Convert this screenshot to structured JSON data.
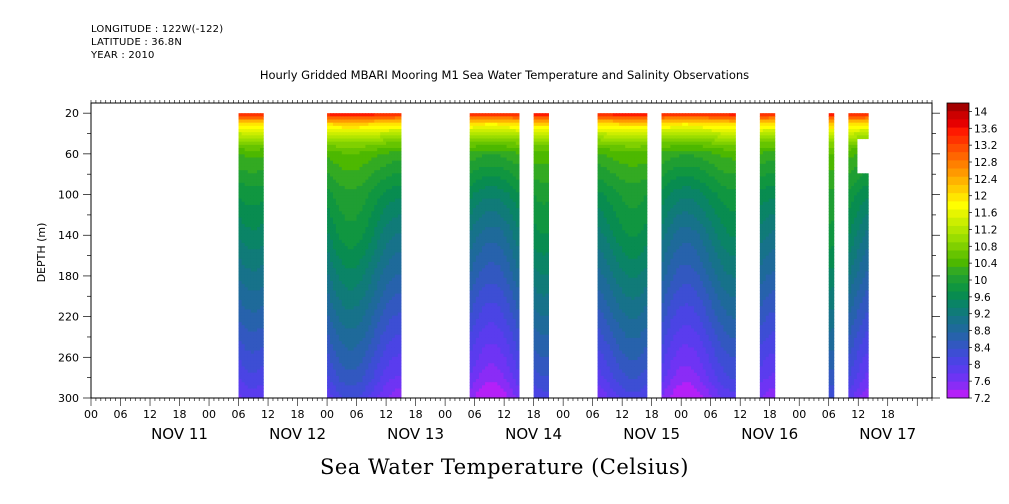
{
  "header": {
    "longitude": "LONGITUDE : 122W(-122)",
    "latitude": "LATITUDE : 36.8N",
    "year": "YEAR : 2010"
  },
  "title": "Hourly Gridded MBARI Mooring M1 Sea Water Temperature and Salinity Observations",
  "caption": "Sea Water Temperature (Celsius)",
  "chart_data": {
    "type": "heatmap",
    "title": "Hourly Gridded MBARI Mooring M1 Sea Water Temperature and Salinity Observations",
    "variable": "Sea Water Temperature (Celsius)",
    "ylabel": "DEPTH (m)",
    "y_reversed": true,
    "ylim": [
      300,
      10
    ],
    "y_ticks": [
      "20",
      "60",
      "100",
      "140",
      "180",
      "220",
      "260",
      "300"
    ],
    "x_hour_ticks": [
      "00",
      "06",
      "12",
      "18",
      "00",
      "06",
      "12",
      "18",
      "00",
      "06",
      "12",
      "18",
      "00",
      "06",
      "12",
      "18",
      "00",
      "06",
      "12",
      "18",
      "00",
      "06",
      "12",
      "18",
      "00",
      "06",
      "12",
      "18"
    ],
    "x_day_labels": [
      "NOV 11",
      "NOV 12",
      "NOV 13",
      "NOV 14",
      "NOV 15",
      "NOV 16",
      "NOV 17"
    ],
    "xlim": [
      "2010-11-10T18:00",
      "2010-11-17T21:00"
    ],
    "colorbar": {
      "labels": [
        "14",
        "13.6",
        "13.2",
        "12.8",
        "12.4",
        "12",
        "11.6",
        "11.2",
        "10.8",
        "10.4",
        "10",
        "9.6",
        "9.2",
        "8.8",
        "8.4",
        "8",
        "7.6",
        "7.2"
      ],
      "levels": [
        14.2,
        14.0,
        13.8,
        13.6,
        13.4,
        13.2,
        13.0,
        12.8,
        12.6,
        12.4,
        12.2,
        12.0,
        11.8,
        11.6,
        11.4,
        11.2,
        11.0,
        10.8,
        10.6,
        10.4,
        10.2,
        10.0,
        9.8,
        9.6,
        9.4,
        9.2,
        9.0,
        8.8,
        8.6,
        8.4,
        8.2,
        8.0,
        7.8,
        7.6,
        7.4,
        7.2
      ],
      "colors": [
        "#a30000",
        "#cc0000",
        "#e60000",
        "#ff1a00",
        "#ff3300",
        "#ff4d00",
        "#ff6600",
        "#ff8000",
        "#ff9900",
        "#ffb300",
        "#ffcc00",
        "#ffe600",
        "#ffff00",
        "#e6f500",
        "#ccee00",
        "#b3e600",
        "#99dd00",
        "#80d000",
        "#66c400",
        "#4db800",
        "#33aa22",
        "#1f9e33",
        "#109640",
        "#088c50",
        "#0a8466",
        "#107b78",
        "#17728a",
        "#1e6a9a",
        "#2762ac",
        "#3258c0",
        "#3d4ed4",
        "#4a44e4",
        "#5a3cee",
        "#6e34f4",
        "#8a2cf6",
        "#b420f8"
      ]
    },
    "data_segments": [
      {
        "start": "2010-11-12T00:00",
        "end": "2010-11-12T05:00",
        "depth_range": [
          20,
          300
        ]
      },
      {
        "start": "2010-11-12T18:00",
        "end": "2010-11-13T09:00",
        "depth_range": [
          20,
          300
        ]
      },
      {
        "start": "2010-11-13T23:00",
        "end": "2010-11-14T09:00",
        "depth_range": [
          20,
          300
        ]
      },
      {
        "start": "2010-11-14T12:00",
        "end": "2010-11-14T15:00",
        "depth_range": [
          20,
          300
        ]
      },
      {
        "start": "2010-11-15T01:00",
        "end": "2010-11-15T11:00",
        "depth_range": [
          20,
          300
        ]
      },
      {
        "start": "2010-11-15T14:00",
        "end": "2010-11-16T05:00",
        "depth_range": [
          20,
          300
        ]
      },
      {
        "start": "2010-11-16T10:00",
        "end": "2010-11-16T13:00",
        "depth_range": [
          20,
          300
        ]
      },
      {
        "start": "2010-11-17T00:00",
        "end": "2010-11-17T01:00",
        "depth_range": [
          20,
          300
        ]
      },
      {
        "start": "2010-11-17T04:00",
        "end": "2010-11-17T08:00",
        "depth_range": [
          20,
          300
        ],
        "gap_depth": [
          45,
          80
        ]
      }
    ],
    "profile_depths": [
      20,
      25,
      30,
      40,
      50,
      60,
      80,
      100,
      120,
      140,
      160,
      180,
      200,
      220,
      240,
      260,
      280,
      300
    ],
    "profile_temperatures": [
      13.6,
      12.8,
      12.0,
      11.2,
      10.6,
      10.2,
      9.9,
      9.6,
      9.4,
      9.2,
      9.0,
      8.8,
      8.6,
      8.4,
      8.2,
      8.0,
      7.8,
      7.5
    ]
  }
}
